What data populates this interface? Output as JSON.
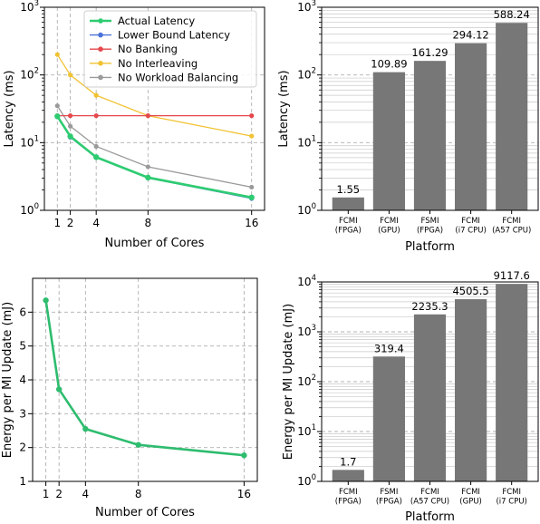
{
  "chart_data": [
    {
      "id": "latency-vs-cores",
      "type": "line",
      "xlabel": "Number of Cores",
      "ylabel": "Latency (ms)",
      "yscale": "log",
      "ylim": [
        1,
        1000
      ],
      "xlim": [
        0,
        17
      ],
      "xticks": [
        1,
        2,
        4,
        8,
        16
      ],
      "yticks": [
        1,
        10,
        100,
        1000
      ],
      "grid": true,
      "legend": "top-right",
      "x": [
        1,
        2,
        4,
        8,
        16
      ],
      "series": [
        {
          "name": "Actual Latency",
          "color": "#2ecc71",
          "values": [
            24.5,
            12.4,
            6.1,
            3.05,
            1.55
          ]
        },
        {
          "name": "Lower Bound Latency",
          "color": "#4a72d9",
          "values": [
            24.0,
            12.0,
            6.0,
            3.0,
            1.5
          ]
        },
        {
          "name": "No Banking",
          "color": "#e5484d",
          "values": [
            25,
            25,
            25,
            25,
            25
          ]
        },
        {
          "name": "No Interleaving",
          "color": "#f1c232",
          "values": [
            200,
            100,
            50,
            25,
            12.5
          ]
        },
        {
          "name": "No Workload Balancing",
          "color": "#9a9a9a",
          "values": [
            35,
            17.5,
            8.8,
            4.4,
            2.2
          ]
        }
      ]
    },
    {
      "id": "latency-by-platform",
      "type": "bar",
      "xlabel": "Platform",
      "ylabel": "Latency (ms)",
      "yscale": "log",
      "ylim": [
        1,
        1000
      ],
      "yticks": [
        1,
        10,
        100,
        1000
      ],
      "categories": [
        "FCMI\n(FPGA)",
        "FCMI\n(GPU)",
        "FSMI\n(FPGA)",
        "FCMI\n(i7 CPU)",
        "FCMI\n(A57 CPU)"
      ],
      "values": [
        1.55,
        109.89,
        161.29,
        294.12,
        588.24
      ],
      "value_labels": [
        "1.55",
        "109.89",
        "161.29",
        "294.12",
        "588.24"
      ],
      "color": "#777777"
    },
    {
      "id": "energy-vs-cores",
      "type": "line",
      "xlabel": "Number of Cores",
      "ylabel": "Energy per MI Update (mJ)",
      "ylim": [
        1,
        7
      ],
      "xlim": [
        0,
        17
      ],
      "xticks": [
        1,
        2,
        4,
        8,
        16
      ],
      "yticks": [
        1,
        2,
        3,
        4,
        5,
        6
      ],
      "grid": true,
      "x": [
        1,
        2,
        4,
        8,
        16
      ],
      "series": [
        {
          "color": "#2ebc6e",
          "values": [
            6.35,
            3.72,
            2.55,
            2.08,
            1.77
          ]
        }
      ]
    },
    {
      "id": "energy-by-platform",
      "type": "bar",
      "xlabel": "Platform",
      "ylabel": "Energy per MI Update (mJ)",
      "yscale": "log",
      "ylim": [
        1,
        10000
      ],
      "yticks": [
        1,
        10,
        100,
        1000,
        10000
      ],
      "categories": [
        "FCMI\n(FPGA)",
        "FSMI\n(FPGA)",
        "FCMI\n(A57 CPU)",
        "FCMI\n(GPU)",
        "FCMI\n(i7 CPU)"
      ],
      "values": [
        1.7,
        319.4,
        2235.3,
        4505.5,
        9117.6
      ],
      "value_labels": [
        "1.7",
        "319.4",
        "2235.3",
        "4505.5",
        "9117.6"
      ],
      "color": "#777777"
    }
  ]
}
